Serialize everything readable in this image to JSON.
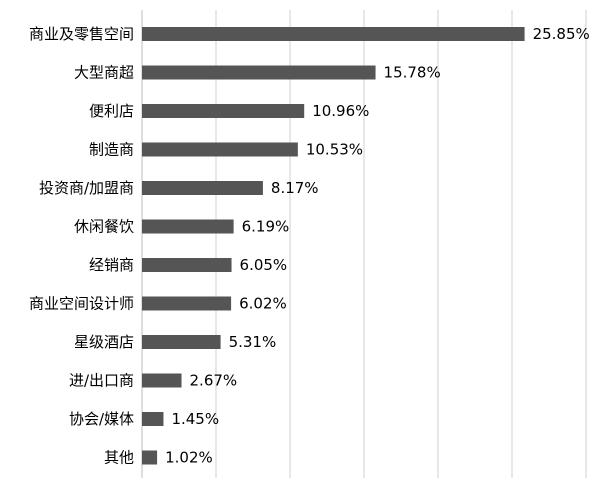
{
  "chart_data": {
    "type": "bar",
    "orientation": "horizontal",
    "categories": [
      "商业及零售空间",
      "大型商超",
      "便利店",
      "制造商",
      "投资商/加盟商",
      "休闲餐饮",
      "经销商",
      "商业空间设计师",
      "星级酒店",
      "进/出口商",
      "协会/媒体",
      "其他"
    ],
    "values": [
      25.85,
      15.78,
      10.96,
      10.53,
      8.17,
      6.19,
      6.05,
      6.02,
      5.31,
      2.67,
      1.45,
      1.02
    ],
    "data_labels": [
      "25.85%",
      "15.78%",
      "10.96%",
      "10.53%",
      "8.17%",
      "6.19%",
      "6.05%",
      "6.02%",
      "5.31%",
      "2.67%",
      "1.45%",
      "1.02%"
    ],
    "title": "",
    "xlabel": "",
    "ylabel": "",
    "xlim": [
      0,
      30
    ],
    "grid": true,
    "legend": "none",
    "colors": {
      "bar": "#555555",
      "grid": "#d0d0d0",
      "text": "#000000"
    }
  }
}
